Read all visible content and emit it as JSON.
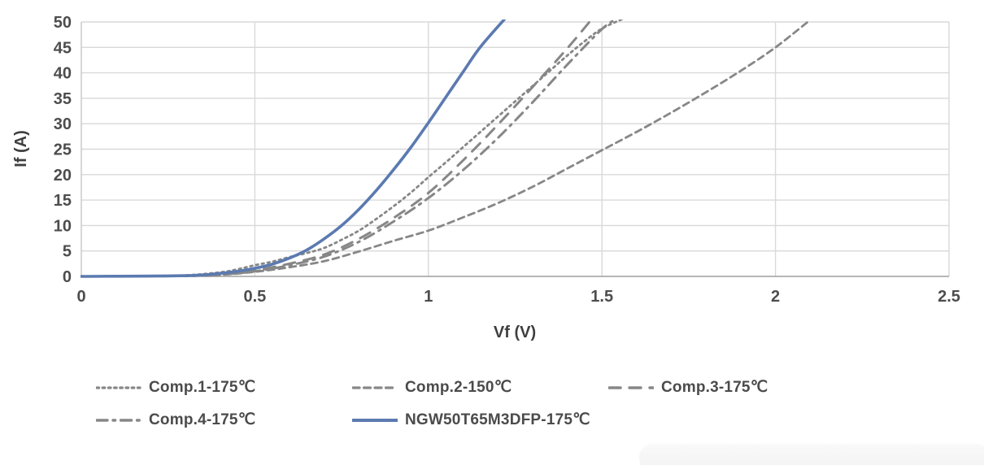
{
  "page": {
    "background": "#ffffff"
  },
  "chart_data": {
    "type": "line",
    "title": "",
    "xlabel": "Vf (V)",
    "ylabel": "If (A)",
    "xlim": [
      0,
      2.5
    ],
    "ylim": [
      0,
      50
    ],
    "xticks": [
      0,
      0.5,
      1,
      1.5,
      2,
      2.5
    ],
    "xtick_labels": [
      "0",
      "0.5",
      "1",
      "1.5",
      "2",
      "2.5"
    ],
    "yticks": [
      0,
      5,
      10,
      15,
      20,
      25,
      30,
      35,
      40,
      45,
      50
    ],
    "ytick_labels": [
      "0",
      "5",
      "10",
      "15",
      "20",
      "25",
      "30",
      "35",
      "40",
      "45",
      "50"
    ],
    "grid": true,
    "legend_position": "bottom",
    "grid_color": "#d9d9d9",
    "axis_color": "#9e9e9e",
    "side_axis_color": "#c6c6c6",
    "tick_label_color": "#4d4d4d",
    "axis_title_color": "#3f3f3f",
    "series": [
      {
        "key": "comp1",
        "name": "Comp.1-175℃",
        "color": "#878787",
        "style": "dotted",
        "points": [
          [
            0,
            0
          ],
          [
            0.2,
            0.05
          ],
          [
            0.3,
            0.2
          ],
          [
            0.4,
            0.8
          ],
          [
            0.45,
            1.4
          ],
          [
            0.5,
            2.2
          ],
          [
            0.55,
            2.9
          ],
          [
            0.6,
            3.8
          ],
          [
            0.65,
            4.6
          ],
          [
            0.7,
            5.6
          ],
          [
            0.75,
            7.2
          ],
          [
            0.8,
            9
          ],
          [
            0.85,
            11.3
          ],
          [
            0.9,
            13.8
          ],
          [
            0.95,
            16.5
          ],
          [
            1.0,
            19.5
          ],
          [
            1.05,
            22.4
          ],
          [
            1.1,
            25.4
          ],
          [
            1.15,
            28.4
          ],
          [
            1.2,
            31.4
          ],
          [
            1.25,
            34.4
          ],
          [
            1.3,
            37.4
          ],
          [
            1.35,
            40.4
          ],
          [
            1.4,
            43.4
          ],
          [
            1.45,
            46.2
          ],
          [
            1.5,
            48.7
          ],
          [
            1.56,
            50.6
          ]
        ]
      },
      {
        "key": "comp2",
        "name": "Comp.2-150℃",
        "color": "#878787",
        "style": "dashed",
        "points": [
          [
            0,
            0
          ],
          [
            0.3,
            0.1
          ],
          [
            0.4,
            0.3
          ],
          [
            0.5,
            0.9
          ],
          [
            0.6,
            1.8
          ],
          [
            0.7,
            3.0
          ],
          [
            0.8,
            4.9
          ],
          [
            0.9,
            7.0
          ],
          [
            1.0,
            9.0
          ],
          [
            1.1,
            11.6
          ],
          [
            1.2,
            14.4
          ],
          [
            1.3,
            17.6
          ],
          [
            1.4,
            21.2
          ],
          [
            1.5,
            24.8
          ],
          [
            1.6,
            28.4
          ],
          [
            1.7,
            32.2
          ],
          [
            1.8,
            36.2
          ],
          [
            1.9,
            40.4
          ],
          [
            2.0,
            45.0
          ],
          [
            2.1,
            50.4
          ]
        ]
      },
      {
        "key": "comp3",
        "name": "Comp.3-175℃",
        "color": "#878787",
        "style": "long-dash",
        "points": [
          [
            0,
            0
          ],
          [
            0.3,
            0.1
          ],
          [
            0.4,
            0.4
          ],
          [
            0.5,
            1.2
          ],
          [
            0.6,
            2.5
          ],
          [
            0.7,
            4.3
          ],
          [
            0.8,
            7.4
          ],
          [
            0.9,
            11.5
          ],
          [
            1.0,
            16.4
          ],
          [
            1.1,
            22.8
          ],
          [
            1.2,
            29.8
          ],
          [
            1.3,
            37.2
          ],
          [
            1.4,
            44.8
          ],
          [
            1.47,
            50.5
          ]
        ]
      },
      {
        "key": "comp4",
        "name": "Comp.4-175℃",
        "color": "#878787",
        "style": "dash-dot",
        "points": [
          [
            0,
            0
          ],
          [
            0.3,
            0.1
          ],
          [
            0.4,
            0.35
          ],
          [
            0.5,
            1.0
          ],
          [
            0.6,
            2.2
          ],
          [
            0.7,
            3.9
          ],
          [
            0.8,
            6.8
          ],
          [
            0.9,
            10.8
          ],
          [
            1.0,
            15.4
          ],
          [
            1.1,
            20.9
          ],
          [
            1.2,
            27.2
          ],
          [
            1.3,
            34.2
          ],
          [
            1.4,
            41.6
          ],
          [
            1.5,
            48.6
          ],
          [
            1.54,
            50.5
          ]
        ]
      },
      {
        "key": "ngw",
        "name": "NGW50T65M3DFP-175℃",
        "color": "#5b7ab0",
        "style": "solid",
        "points": [
          [
            0,
            0
          ],
          [
            0.3,
            0.15
          ],
          [
            0.4,
            0.6
          ],
          [
            0.45,
            1.0
          ],
          [
            0.5,
            1.6
          ],
          [
            0.55,
            2.4
          ],
          [
            0.6,
            3.6
          ],
          [
            0.65,
            5.2
          ],
          [
            0.7,
            7.4
          ],
          [
            0.75,
            10.0
          ],
          [
            0.8,
            13.2
          ],
          [
            0.85,
            16.9
          ],
          [
            0.9,
            21.0
          ],
          [
            0.95,
            25.4
          ],
          [
            1.0,
            30.2
          ],
          [
            1.05,
            35.2
          ],
          [
            1.1,
            40.2
          ],
          [
            1.15,
            45.1
          ],
          [
            1.22,
            50.6
          ]
        ]
      }
    ]
  }
}
